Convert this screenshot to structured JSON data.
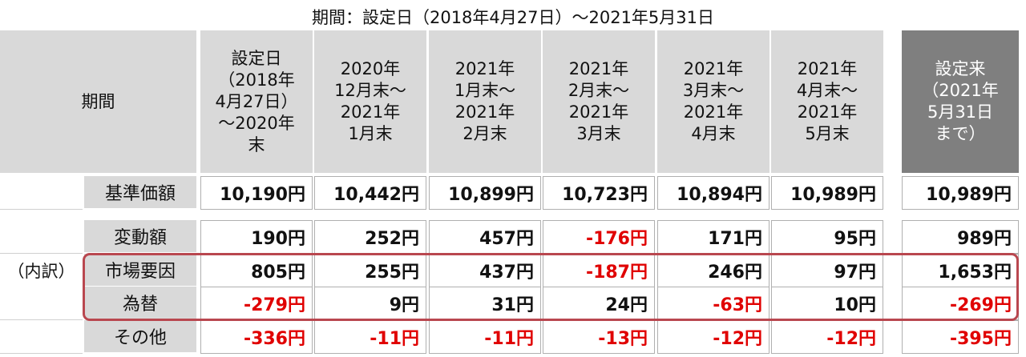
{
  "title": "期間：設定日（2018年4月27日）～2021年5月31日",
  "header": {
    "label": "期間",
    "columns": [
      [
        "設定日",
        "（2018年",
        "4月27日）",
        "～2020年",
        "末"
      ],
      [
        "2020年",
        "12月末～",
        "2021年",
        "1月末"
      ],
      [
        "2021年",
        "1月末～",
        "2021年",
        "2月末"
      ],
      [
        "2021年",
        "2月末～",
        "2021年",
        "3月末"
      ],
      [
        "2021年",
        "3月末～",
        "2021年",
        "4月末"
      ],
      [
        "2021年",
        "4月末～",
        "2021年",
        "5月末"
      ]
    ],
    "total": [
      "設定来",
      "（2021年",
      "5月31日",
      "まで）"
    ]
  },
  "rows": [
    {
      "label": "基準価額",
      "values": [
        "10,190円",
        "10,442円",
        "10,899円",
        "10,723円",
        "10,894円",
        "10,989円"
      ],
      "total": "10,989円"
    },
    {
      "label": "変動額",
      "values": [
        "190円",
        "252円",
        "457円",
        "-176円",
        "171円",
        "95円"
      ],
      "total": "989円"
    },
    {
      "label": "市場要因",
      "values": [
        "805円",
        "255円",
        "437円",
        "-187円",
        "246円",
        "97円"
      ],
      "total": "1,653円"
    },
    {
      "label": "為替",
      "values": [
        "-279円",
        "9円",
        "31円",
        "24円",
        "-63円",
        "10円"
      ],
      "total": "-269円"
    },
    {
      "label": "その他",
      "values": [
        "-336円",
        "-11円",
        "-11円",
        "-13円",
        "-12円",
        "-12円"
      ],
      "total": "-395円"
    }
  ],
  "breakdown_label": "（内訳）"
}
